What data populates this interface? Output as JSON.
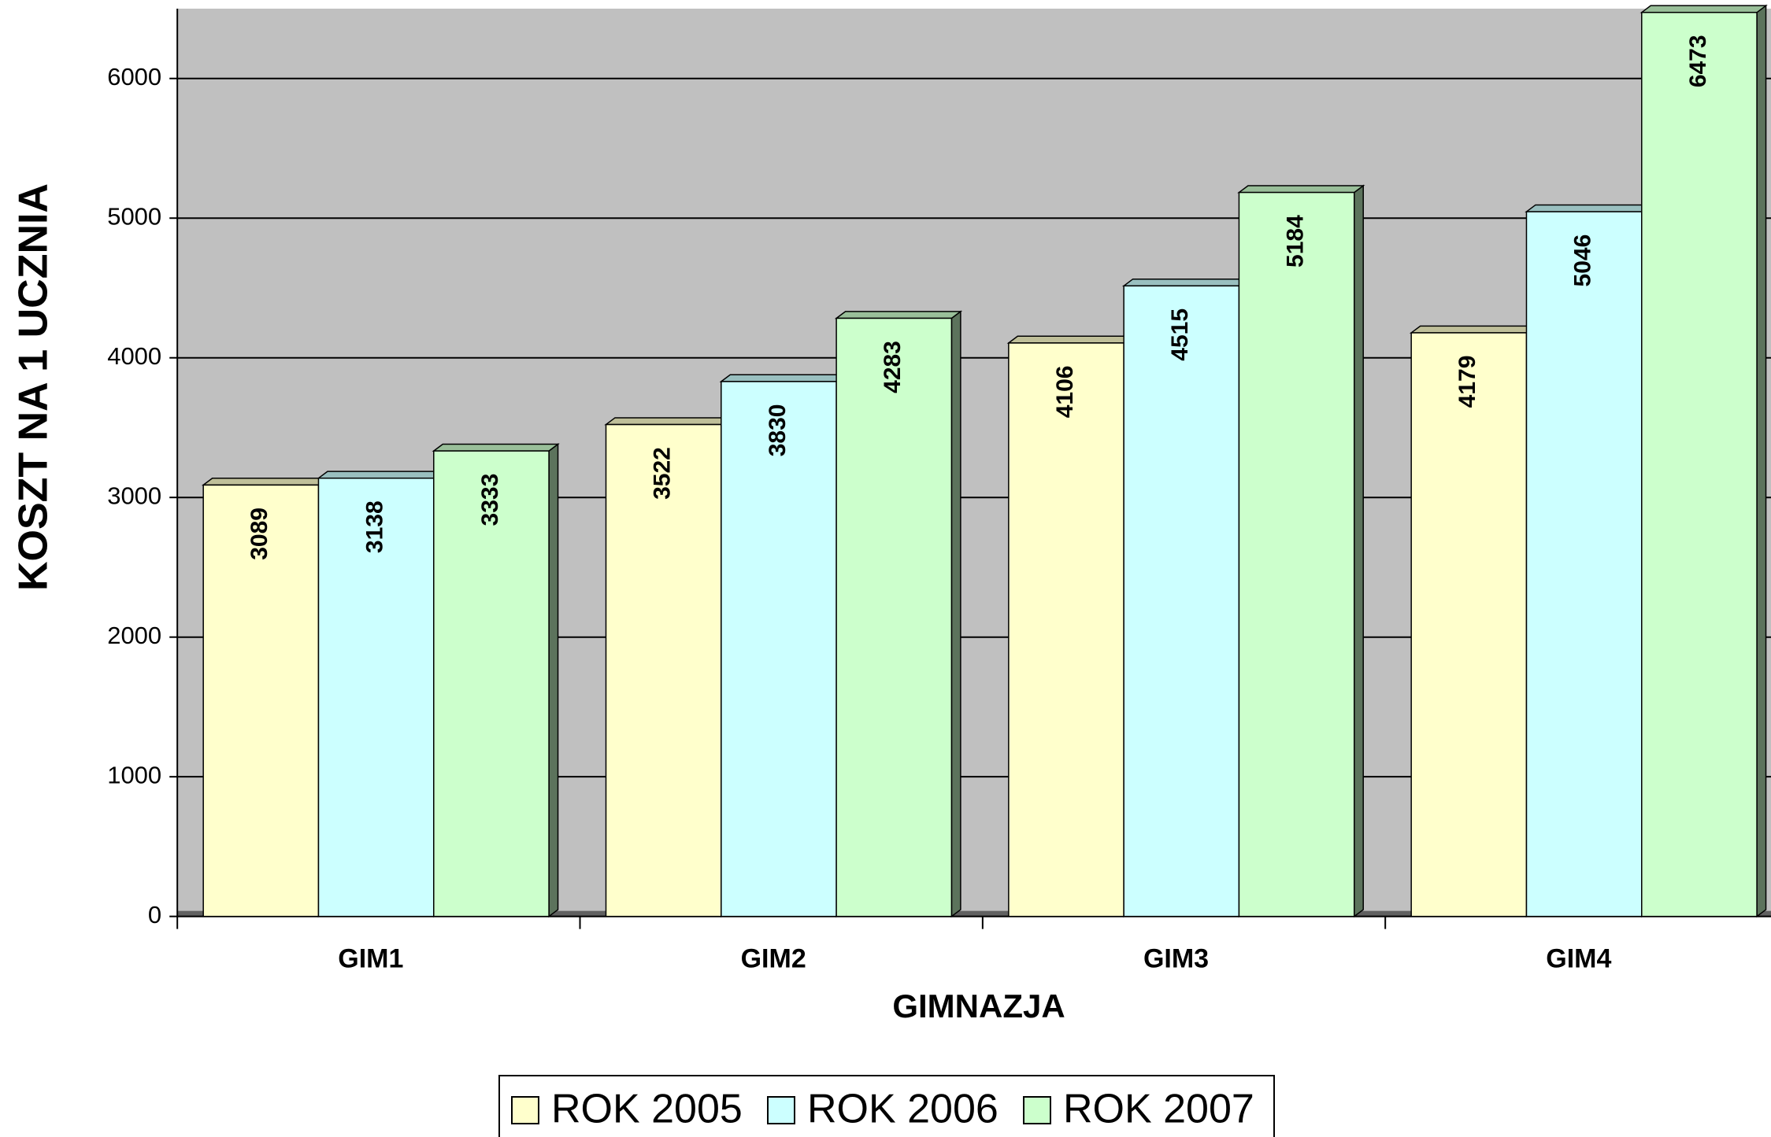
{
  "chart_data": {
    "type": "bar3d",
    "y_axis_label": "KOSZT NA 1 UCZNIA",
    "x_axis_label": "GIMNAZJA",
    "categories": [
      "GIM1",
      "GIM2",
      "GIM3",
      "GIM4"
    ],
    "series": [
      {
        "name": "ROK 2005",
        "color": "#ffffcc",
        "values": [
          3089,
          3522,
          4106,
          4179
        ]
      },
      {
        "name": "ROK 2006",
        "color": "#ccffff",
        "values": [
          3138,
          3830,
          4515,
          5046
        ]
      },
      {
        "name": "ROK 2007",
        "color": "#ccffcc",
        "values": [
          3333,
          4283,
          5184,
          6473
        ]
      }
    ],
    "ylim": [
      0,
      6500
    ],
    "yticks": [
      0,
      1000,
      2000,
      3000,
      4000,
      5000,
      6000
    ],
    "grid": true
  }
}
